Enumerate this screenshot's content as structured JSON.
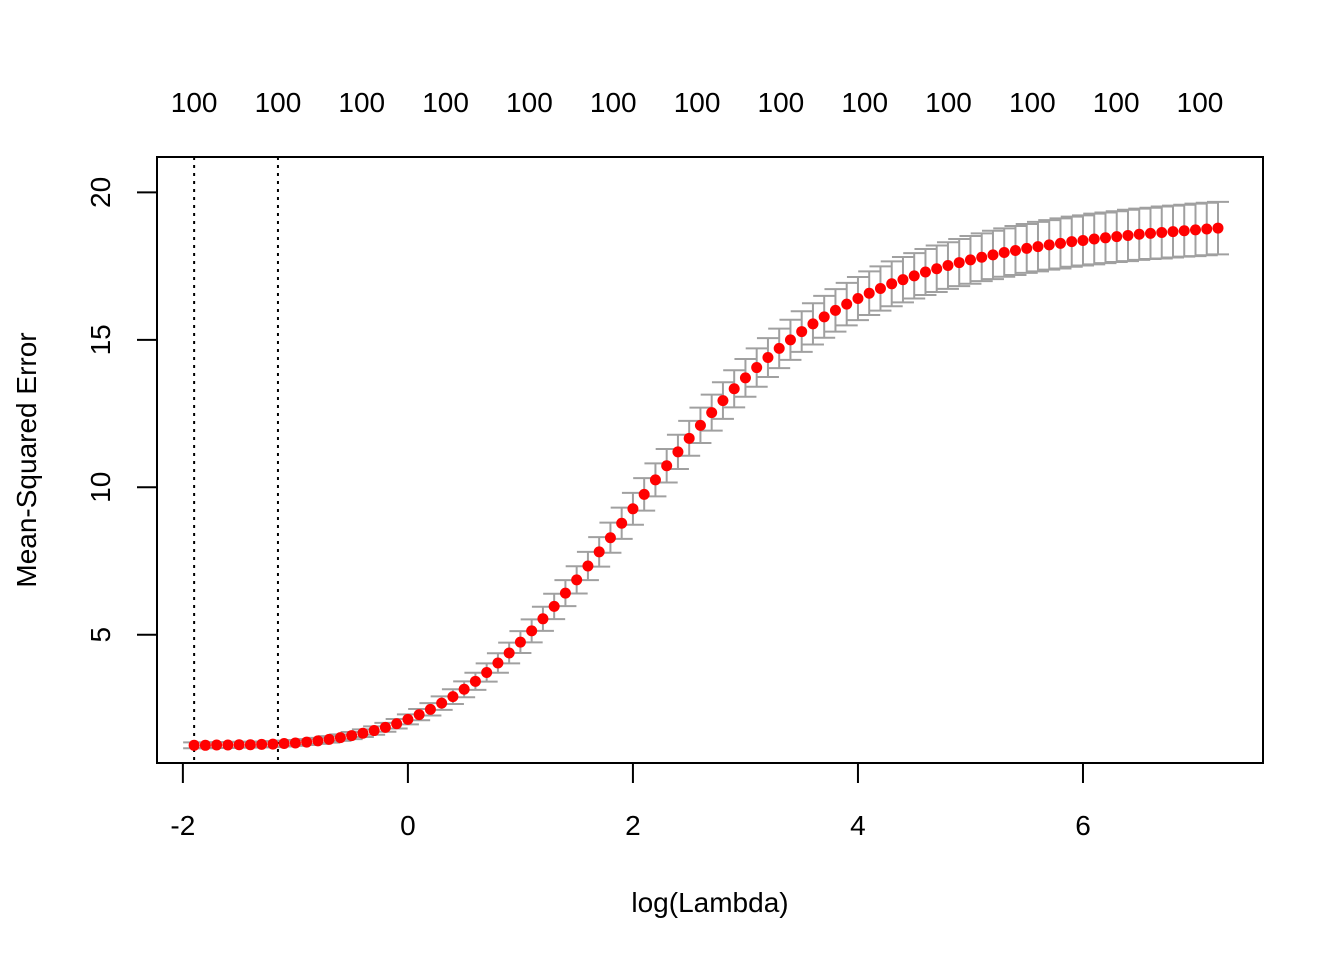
{
  "chart_data": {
    "type": "scatter",
    "title": "",
    "xlabel": "log(Lambda)",
    "ylabel": "Mean-Squared Error",
    "xlim": [
      -2.23,
      7.6
    ],
    "ylim": [
      0.65,
      21.2
    ],
    "x_ticks": [
      -2,
      0,
      2,
      4,
      6
    ],
    "y_ticks": [
      5,
      10,
      15,
      20
    ],
    "top_labels": [
      "100",
      "100",
      "100",
      "100",
      "100",
      "100",
      "100",
      "100",
      "100",
      "100",
      "100",
      "100",
      "100"
    ],
    "top_label_x": [
      -1.9,
      -1.155,
      -0.41,
      0.335,
      1.08,
      1.825,
      2.57,
      3.315,
      4.06,
      4.805,
      5.55,
      6.295,
      7.04
    ],
    "vlines": [
      -1.9,
      -1.155
    ],
    "grid": false,
    "legend": "none",
    "colors": {
      "points": "#ff0000",
      "error_bars": "#a0a0a0",
      "axis": "#000000"
    },
    "series": [
      {
        "x": [
          -1.9,
          -1.8,
          -1.7,
          -1.6,
          -1.5,
          -1.4,
          -1.3,
          -1.2,
          -1.1,
          -1.0,
          -0.9,
          -0.8,
          -0.7,
          -0.6,
          -0.5,
          -0.4,
          -0.3,
          -0.2,
          -0.1,
          0.0,
          0.1,
          0.2,
          0.3,
          0.4,
          0.5,
          0.6,
          0.7,
          0.8,
          0.9,
          1.0,
          1.1,
          1.2,
          1.3,
          1.4,
          1.5,
          1.6,
          1.7,
          1.8,
          1.9,
          2.0,
          2.1,
          2.2,
          2.3,
          2.4,
          2.5,
          2.6,
          2.7,
          2.8,
          2.9,
          3.0,
          3.1,
          3.2,
          3.3,
          3.4,
          3.5,
          3.6,
          3.7,
          3.8,
          3.9,
          4.0,
          4.1,
          4.2,
          4.3,
          4.4,
          4.5,
          4.6,
          4.7,
          4.8,
          4.9,
          5.0,
          5.1,
          5.2,
          5.3,
          5.4,
          5.5,
          5.6,
          5.7,
          5.8,
          5.9,
          6.0,
          6.1,
          6.2,
          6.3,
          6.4,
          6.5,
          6.6,
          6.7,
          6.8,
          6.9,
          7.0,
          7.1,
          7.2
        ],
        "y": [
          1.25,
          1.25,
          1.26,
          1.26,
          1.27,
          1.27,
          1.28,
          1.29,
          1.31,
          1.33,
          1.36,
          1.4,
          1.45,
          1.51,
          1.58,
          1.66,
          1.75,
          1.86,
          1.98,
          2.13,
          2.29,
          2.47,
          2.68,
          2.9,
          3.15,
          3.42,
          3.72,
          4.04,
          4.38,
          4.75,
          5.13,
          5.54,
          5.96,
          6.41,
          6.86,
          7.33,
          7.81,
          8.29,
          8.78,
          9.27,
          9.76,
          10.25,
          10.73,
          11.2,
          11.66,
          12.1,
          12.53,
          12.94,
          13.34,
          13.71,
          14.06,
          14.4,
          14.71,
          15.0,
          15.28,
          15.54,
          15.78,
          16.0,
          16.21,
          16.4,
          16.58,
          16.74,
          16.9,
          17.04,
          17.17,
          17.3,
          17.41,
          17.52,
          17.62,
          17.71,
          17.8,
          17.88,
          17.96,
          18.03,
          18.1,
          18.16,
          18.22,
          18.27,
          18.33,
          18.37,
          18.42,
          18.46,
          18.5,
          18.54,
          18.58,
          18.61,
          18.64,
          18.67,
          18.7,
          18.73,
          18.76,
          18.79
        ],
        "err": [
          0.1,
          0.1,
          0.1,
          0.1,
          0.1,
          0.1,
          0.1,
          0.1,
          0.1,
          0.1,
          0.1,
          0.1,
          0.11,
          0.11,
          0.12,
          0.13,
          0.14,
          0.15,
          0.16,
          0.17,
          0.19,
          0.21,
          0.23,
          0.25,
          0.27,
          0.29,
          0.31,
          0.33,
          0.35,
          0.37,
          0.39,
          0.41,
          0.43,
          0.44,
          0.46,
          0.48,
          0.5,
          0.51,
          0.53,
          0.54,
          0.55,
          0.56,
          0.57,
          0.58,
          0.59,
          0.6,
          0.61,
          0.62,
          0.63,
          0.64,
          0.65,
          0.66,
          0.67,
          0.68,
          0.69,
          0.7,
          0.71,
          0.72,
          0.72,
          0.73,
          0.74,
          0.75,
          0.76,
          0.77,
          0.77,
          0.78,
          0.79,
          0.79,
          0.8,
          0.81,
          0.81,
          0.82,
          0.82,
          0.83,
          0.83,
          0.84,
          0.84,
          0.85,
          0.85,
          0.85,
          0.86,
          0.86,
          0.86,
          0.87,
          0.87,
          0.87,
          0.88,
          0.88,
          0.88,
          0.89,
          0.89,
          0.89
        ]
      }
    ]
  }
}
